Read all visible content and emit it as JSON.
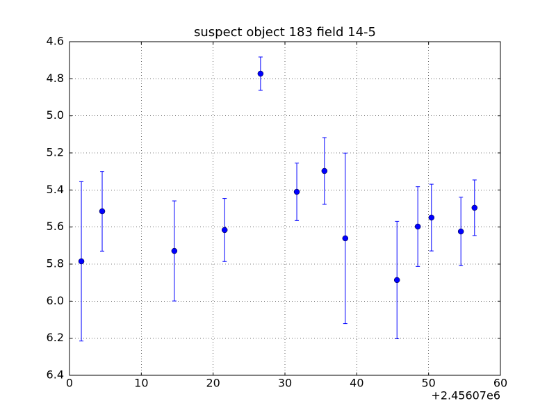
{
  "chart_data": {
    "type": "errorbar",
    "title": "suspect object 183 field 14-5",
    "x_offset_label": "+2.45607e6",
    "x": [
      1.65,
      4.55,
      14.6,
      21.6,
      26.6,
      31.65,
      35.5,
      38.4,
      45.6,
      48.5,
      50.4,
      54.5,
      56.4
    ],
    "values": [
      5.785,
      5.515,
      5.729,
      5.616,
      4.7725,
      5.41,
      5.2975,
      5.661,
      5.886,
      5.5975,
      5.549,
      5.624,
      5.496
    ],
    "errors": [
      0.43,
      0.215,
      0.27,
      0.17,
      0.09,
      0.155,
      0.18,
      0.46,
      0.317,
      0.215,
      0.18,
      0.185,
      0.15
    ],
    "color": "#0000ff",
    "xlim": [
      0,
      60
    ],
    "xticks": [
      0,
      10,
      20,
      30,
      40,
      50,
      60
    ],
    "ylim": [
      6.4,
      4.6
    ],
    "yticks": [
      4.6,
      4.8,
      {
        "value": 5.0,
        "label": "5.0"
      },
      5.2,
      5.4,
      5.6,
      5.8,
      {
        "value": 6.0,
        "label": "6.0"
      },
      6.2,
      6.4
    ],
    "grid": true
  }
}
